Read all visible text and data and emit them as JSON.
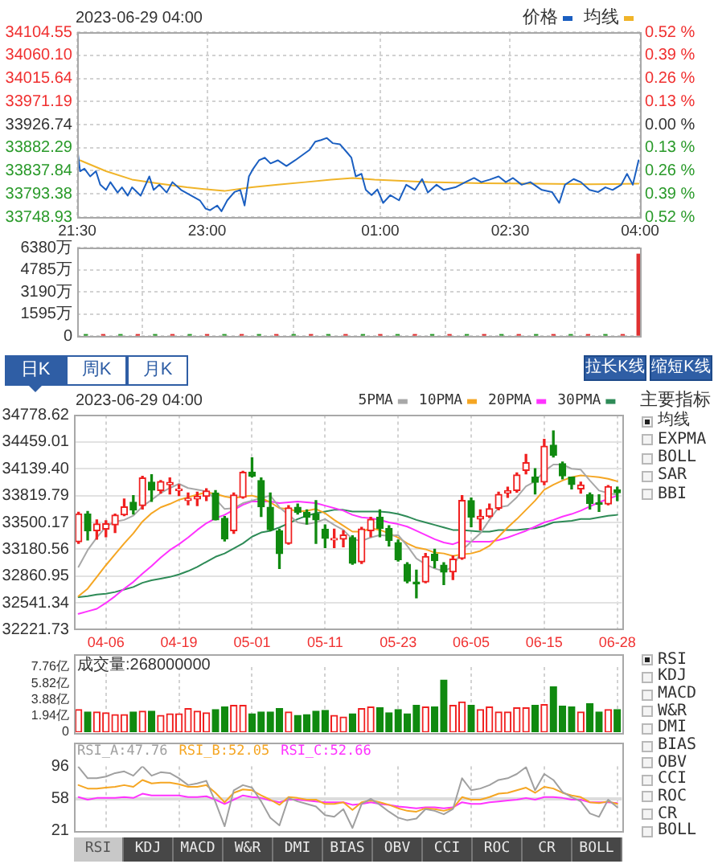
{
  "chart_data": [
    {
      "type": "line",
      "title": "2023-06-29 04:00",
      "legend": "top right",
      "grid": true,
      "xlim": [
        "2023-06-28T21:30",
        "2023-06-29T04:00"
      ],
      "xticks": [
        {
          "value": "2023-06-28T21:30",
          "label": "21:30"
        },
        {
          "value": "2023-06-28T23:00",
          "label": "23:00"
        },
        {
          "value": "2023-06-29T01:00",
          "label": "01:00"
        },
        {
          "value": "2023-06-29T02:30",
          "label": "02:30"
        },
        {
          "value": "2023-06-29T04:00",
          "label": "04:00"
        }
      ],
      "ylim": [
        33748.93,
        34104.55
      ],
      "yticks": [
        33748.93,
        33793.38,
        33837.84,
        33882.29,
        33926.74,
        33971.19,
        34015.64,
        {
          "value": 34060.1,
          "label": "34060.10"
        },
        34104.55
      ],
      "y2lim": [
        -0.52,
        0.52
      ],
      "y2ticks": [
        {
          "value": -0.52,
          "label": "0.52 %"
        },
        {
          "value": -0.39,
          "label": "0.39 %"
        },
        {
          "value": -0.26,
          "label": "0.26 %"
        },
        {
          "value": -0.13,
          "label": "0.13 %"
        },
        {
          "value": 0,
          "label": "0.00 %"
        },
        {
          "value": 0.13,
          "label": "0.13 %"
        },
        {
          "value": 0.26,
          "label": "0.26 %"
        },
        {
          "value": 0.39,
          "label": "0.39 %"
        },
        {
          "value": 0.52,
          "label": "0.52 %"
        }
      ],
      "series": [
        {
          "name": "价格",
          "color": "#1b5fc1",
          "x": [
            "2023-06-28T21:30",
            "2023-06-28T21:32",
            "2023-06-28T21:35",
            "2023-06-28T21:39",
            "2023-06-28T21:43",
            "2023-06-28T21:46",
            "2023-06-28T21:50",
            "2023-06-28T21:53",
            "2023-06-28T21:58",
            "2023-06-28T22:01",
            "2023-06-28T22:05",
            "2023-06-28T22:08",
            "2023-06-28T22:14",
            "2023-06-28T22:20",
            "2023-06-28T22:23",
            "2023-06-28T22:27",
            "2023-06-28T22:32",
            "2023-06-28T22:36",
            "2023-06-28T22:42",
            "2023-06-28T22:49",
            "2023-06-28T22:55",
            "2023-06-28T22:59",
            "2023-06-28T23:02",
            "2023-06-28T23:07",
            "2023-06-28T23:10",
            "2023-06-28T23:14",
            "2023-06-28T23:19",
            "2023-06-28T23:23",
            "2023-06-28T23:26",
            "2023-06-28T23:29",
            "2023-06-28T23:32",
            "2023-06-28T23:36",
            "2023-06-28T23:40",
            "2023-06-28T23:44",
            "2023-06-28T23:49",
            "2023-06-28T23:55",
            "2023-06-29T00:01",
            "2023-06-29T00:06",
            "2023-06-29T00:11",
            "2023-06-29T00:15",
            "2023-06-29T00:19",
            "2023-06-29T00:23",
            "2023-06-29T00:27",
            "2023-06-29T00:32",
            "2023-06-29T00:37",
            "2023-06-29T00:40",
            "2023-06-29T00:43",
            "2023-06-29T00:47",
            "2023-06-29T00:50",
            "2023-06-29T00:54",
            "2023-06-29T00:58",
            "2023-06-29T01:02",
            "2023-06-29T01:07",
            "2023-06-29T01:13",
            "2023-06-29T01:18",
            "2023-06-29T01:24",
            "2023-06-29T01:29",
            "2023-06-29T01:33",
            "2023-06-29T01:39",
            "2023-06-29T01:44",
            "2023-06-29T01:52",
            "2023-06-29T01:59",
            "2023-06-29T02:05",
            "2023-06-29T02:10",
            "2023-06-29T02:16",
            "2023-06-29T02:22",
            "2023-06-29T02:27",
            "2023-06-29T02:32",
            "2023-06-29T02:38",
            "2023-06-29T02:44",
            "2023-06-29T02:52",
            "2023-06-29T02:59",
            "2023-06-29T03:04",
            "2023-06-29T03:08",
            "2023-06-29T03:14",
            "2023-06-29T03:19",
            "2023-06-29T03:25",
            "2023-06-29T03:31",
            "2023-06-29T03:36",
            "2023-06-29T03:41",
            "2023-06-29T03:47",
            "2023-06-29T03:51",
            "2023-06-29T03:55",
            "2023-06-29T03:59"
          ],
          "values": [
            33883,
            33837,
            33842,
            33827,
            33837,
            33811,
            33801,
            33816,
            33796,
            33806,
            33790,
            33806,
            33790,
            33827,
            33801,
            33811,
            33796,
            33816,
            33801,
            33790,
            33781,
            33765,
            33762,
            33771,
            33760,
            33781,
            33797,
            33801,
            33771,
            33827,
            33842,
            33858,
            33863,
            33852,
            33858,
            33847,
            33858,
            33868,
            33878,
            33894,
            33897,
            33901,
            33891,
            33889,
            33873,
            33863,
            33827,
            33832,
            33801,
            33791,
            33802,
            33776,
            33791,
            33781,
            33811,
            33801,
            33822,
            33796,
            33811,
            33801,
            33806,
            33816,
            33824,
            33816,
            33821,
            33827,
            33816,
            33824,
            33811,
            33816,
            33801,
            33797,
            33776,
            33811,
            33822,
            33816,
            33801,
            33797,
            33806,
            33801,
            33811,
            33832,
            33811,
            33858
          ]
        },
        {
          "name": "均线",
          "color": "#f0b429",
          "x": [
            "2023-06-28T21:32",
            "2023-06-28T21:50",
            "2023-06-28T22:08",
            "2023-06-28T22:27",
            "2023-06-28T22:46",
            "2023-06-28T23:04",
            "2023-06-28T23:12",
            "2023-06-28T23:31",
            "2023-06-28T23:49",
            "2023-06-29T00:08",
            "2023-06-29T00:26",
            "2023-06-29T00:41",
            "2023-06-29T00:56",
            "2023-06-29T01:33",
            "2023-06-29T02:10",
            "2023-06-29T02:47",
            "2023-06-29T03:25",
            "2023-06-29T03:59"
          ],
          "values": [
            33858,
            33837,
            33821,
            33813,
            33806,
            33801,
            33799,
            33806,
            33811,
            33816,
            33821,
            33824,
            33821,
            33816,
            33814,
            33813,
            33812,
            33813
          ]
        }
      ]
    },
    {
      "type": "bar",
      "tick_labels": "y",
      "grid": true,
      "xlim": [
        "2023-06-28T21:30",
        "2023-06-29T04:00"
      ],
      "xticks": [
        {
          "value": "2023-06-28T21:30",
          "label": null
        },
        {
          "value": "2023-06-28T23:00",
          "label": null
        },
        {
          "value": "2023-06-29T01:00",
          "label": null
        },
        {
          "value": "2023-06-29T02:30",
          "label": null
        },
        {
          "value": "2023-06-29T04:00",
          "label": null
        }
      ],
      "ylim": [
        0,
        6380
      ],
      "yticks": [
        0,
        {
          "value": 1595,
          "label": "1595万"
        },
        {
          "value": 3190,
          "label": "3190万"
        },
        {
          "value": 4785,
          "label": "4785万"
        },
        {
          "value": 6380,
          "label": "6380万"
        }
      ],
      "x": [
        "2023-06-28T21:36",
        "2023-06-28T21:48",
        "2023-06-28T22:00",
        "2023-06-28T22:12",
        "2023-06-28T22:24",
        "2023-06-28T22:36",
        "2023-06-28T22:48",
        "2023-06-28T23:00",
        "2023-06-28T23:12",
        "2023-06-28T23:24",
        "2023-06-28T23:36",
        "2023-06-28T23:48",
        "2023-06-29T00:00",
        "2023-06-29T00:12",
        "2023-06-29T00:24",
        "2023-06-29T00:36",
        "2023-06-29T00:48",
        "2023-06-29T01:00",
        "2023-06-29T01:12",
        "2023-06-29T01:24",
        "2023-06-29T01:36",
        "2023-06-29T01:48",
        "2023-06-29T02:00",
        "2023-06-29T02:12",
        "2023-06-29T02:24",
        "2023-06-29T02:36",
        "2023-06-29T02:48",
        "2023-06-29T03:00",
        "2023-06-29T03:12",
        "2023-06-29T03:24",
        "2023-06-29T03:36",
        "2023-06-29T03:48",
        "2023-06-29T03:59"
      ],
      "values": [
        100,
        100,
        100,
        100,
        100,
        100,
        100,
        100,
        100,
        100,
        100,
        100,
        100,
        100,
        100,
        100,
        100,
        100,
        100,
        100,
        100,
        100,
        100,
        100,
        100,
        100,
        100,
        100,
        100,
        100,
        100,
        100,
        5900
      ],
      "colors": [
        "#2a9a2a",
        "#e03030",
        "#2a9a2a",
        "#e03030",
        "#2a9a2a",
        "#e03030",
        "#2a9a2a",
        "#e03030",
        "#2a9a2a",
        "#e03030",
        "#2a9a2a",
        "#e03030",
        "#2a9a2a",
        "#e03030",
        "#2a9a2a",
        "#e03030",
        "#2a9a2a",
        "#e03030",
        "#2a9a2a",
        "#e03030",
        "#2a9a2a",
        "#e03030",
        "#2a9a2a",
        "#e03030",
        "#2a9a2a",
        "#e03030",
        "#2a9a2a",
        "#e03030",
        "#2a9a2a",
        "#e03030",
        "#2a9a2a",
        "#e03030",
        "#e03030"
      ]
    },
    {
      "type": "candlestick",
      "title": "2023-06-29 04:00",
      "legend": "top right",
      "grid": true,
      "categories": [
        null,
        null,
        null,
        "04-06",
        null,
        null,
        null,
        null,
        null,
        null,
        null,
        "04-19",
        null,
        null,
        null,
        null,
        null,
        null,
        null,
        "05-01",
        null,
        null,
        null,
        null,
        null,
        null,
        null,
        "05-11",
        null,
        null,
        null,
        null,
        null,
        null,
        null,
        "05-23",
        null,
        null,
        null,
        null,
        null,
        null,
        null,
        "06-05",
        null,
        null,
        null,
        null,
        null,
        null,
        null,
        "06-15",
        null,
        null,
        null,
        null,
        null,
        null,
        null,
        "06-28"
      ],
      "ylim": [
        32221.73,
        34778.62
      ],
      "yticks": [
        32221.73,
        32541.34,
        32860.95,
        33180.56,
        33500.17,
        33819.79,
        {
          "value": 34139.4,
          "label": "34139.40"
        },
        34459.01,
        34778.62
      ],
      "ohlc": [
        [
          33270,
          33620,
          33250,
          33601
        ],
        [
          33600,
          33630,
          33290,
          33402
        ],
        [
          33400,
          33530,
          33300,
          33483
        ],
        [
          33420,
          33520,
          33330,
          33485
        ],
        [
          33470,
          33600,
          33380,
          33587
        ],
        [
          33590,
          33780,
          33580,
          33685
        ],
        [
          33740,
          33820,
          33600,
          33647
        ],
        [
          33700,
          34050,
          33660,
          34030
        ],
        [
          33980,
          34070,
          33750,
          33886
        ],
        [
          33880,
          34000,
          33850,
          33987
        ],
        [
          33950,
          34030,
          33840,
          33977
        ],
        [
          33880,
          33950,
          33820,
          33897
        ],
        [
          33760,
          33850,
          33710,
          33787
        ],
        [
          33780,
          33860,
          33700,
          33809
        ],
        [
          33810,
          33900,
          33760,
          33875
        ],
        [
          33850,
          33880,
          33530,
          33531
        ],
        [
          33550,
          33570,
          33280,
          33302
        ],
        [
          33400,
          33850,
          33370,
          33826
        ],
        [
          33800,
          34110,
          33790,
          34098
        ],
        [
          34100,
          34270,
          34040,
          34052
        ],
        [
          34000,
          34030,
          33570,
          33685
        ],
        [
          33680,
          33850,
          33400,
          33414
        ],
        [
          33400,
          33420,
          32950,
          33128
        ],
        [
          33250,
          33700,
          33240,
          33674
        ],
        [
          33680,
          33720,
          33600,
          33619
        ],
        [
          33620,
          33650,
          33480,
          33562
        ],
        [
          33600,
          33760,
          33250,
          33531
        ],
        [
          33420,
          33470,
          33200,
          33310
        ],
        [
          33290,
          33420,
          33200,
          33301
        ],
        [
          33300,
          33400,
          33210,
          33349
        ],
        [
          33320,
          33340,
          33000,
          33012
        ],
        [
          33030,
          33440,
          33010,
          33421
        ],
        [
          33400,
          33560,
          33330,
          33536
        ],
        [
          33560,
          33650,
          33330,
          33427
        ],
        [
          33430,
          33460,
          33220,
          33287
        ],
        [
          33260,
          33290,
          33040,
          33056
        ],
        [
          33000,
          33020,
          32780,
          32800
        ],
        [
          32790,
          32930,
          32600,
          32765
        ],
        [
          32790,
          33130,
          32780,
          33093
        ],
        [
          33120,
          33180,
          32960,
          33043
        ],
        [
          32990,
          33020,
          32760,
          32908
        ],
        [
          32910,
          33100,
          32820,
          33062
        ],
        [
          33070,
          33820,
          33060,
          33763
        ],
        [
          33760,
          33790,
          33450,
          33563
        ],
        [
          33540,
          33650,
          33410,
          33573
        ],
        [
          33570,
          33720,
          33560,
          33665
        ],
        [
          33670,
          33860,
          33650,
          33834
        ],
        [
          33850,
          33920,
          33800,
          33877
        ],
        [
          33880,
          34090,
          33860,
          34066
        ],
        [
          34120,
          34310,
          34080,
          34212
        ],
        [
          34040,
          34140,
          33840,
          33979
        ],
        [
          33980,
          34490,
          33950,
          34408
        ],
        [
          34420,
          34590,
          34280,
          34299
        ],
        [
          34200,
          34220,
          34020,
          34054
        ],
        [
          34040,
          34040,
          33900,
          33952
        ],
        [
          33900,
          33980,
          33850,
          33947
        ],
        [
          33830,
          33850,
          33660,
          33727
        ],
        [
          33730,
          33830,
          33630,
          33715
        ],
        [
          33720,
          33940,
          33710,
          33927
        ],
        [
          33890,
          33920,
          33760,
          33853
        ]
      ],
      "colors": [
        "#f02020",
        "#108a10",
        "#f02020",
        "#f02020",
        "#f02020",
        "#f02020",
        "#108a10",
        "#f02020",
        "#108a10",
        "#f02020",
        "#f02020",
        "#f02020",
        "#f02020",
        "#f02020",
        "#f02020",
        "#108a10",
        "#108a10",
        "#f02020",
        "#f02020",
        "#108a10",
        "#108a10",
        "#108a10",
        "#108a10",
        "#f02020",
        "#108a10",
        "#108a10",
        "#108a10",
        "#108a10",
        "#f02020",
        "#f02020",
        "#108a10",
        "#f02020",
        "#f02020",
        "#108a10",
        "#108a10",
        "#108a10",
        "#108a10",
        "#108a10",
        "#f02020",
        "#108a10",
        "#108a10",
        "#f02020",
        "#f02020",
        "#108a10",
        "#f02020",
        "#f02020",
        "#f02020",
        "#f02020",
        "#f02020",
        "#f02020",
        "#108a10",
        "#f02020",
        "#108a10",
        "#108a10",
        "#108a10",
        "#f02020",
        "#108a10",
        "#108a10",
        "#f02020",
        "#108a10"
      ],
      "series": [
        {
          "name": "5PMA",
          "type": "line",
          "color": "#a8a8a8",
          "values": [
            32970,
            33170,
            33320,
            33450,
            33510,
            33530,
            33580,
            33690,
            33770,
            33850,
            33910,
            33960,
            33910,
            33890,
            33870,
            33780,
            33660,
            33670,
            33730,
            33760,
            33790,
            33820,
            33680,
            33590,
            33500,
            33480,
            33500,
            33540,
            33470,
            33410,
            33300,
            33280,
            33320,
            33350,
            33340,
            33350,
            33220,
            33070,
            33000,
            32950,
            32920,
            32970,
            33170,
            33270,
            33370,
            33530,
            33680,
            33700,
            33800,
            33930,
            33990,
            34110,
            34190,
            34190,
            34140,
            34130,
            34000,
            33880,
            33850,
            33830
          ]
        },
        {
          "name": "10PMA",
          "type": "line",
          "color": "#f5a623",
          "values": [
            32620,
            32710,
            32850,
            32990,
            33120,
            33250,
            33370,
            33510,
            33610,
            33680,
            33720,
            33770,
            33800,
            33830,
            33860,
            33840,
            33810,
            33790,
            33810,
            33820,
            33790,
            33740,
            33670,
            33660,
            33630,
            33640,
            33660,
            33610,
            33530,
            33460,
            33390,
            33390,
            33430,
            33410,
            33370,
            33320,
            33250,
            33200,
            33180,
            33140,
            33130,
            33100,
            33120,
            33130,
            33160,
            33220,
            33330,
            33440,
            33540,
            33650,
            33760,
            33890,
            33950,
            34000,
            34040,
            34060,
            34050,
            34040,
            34020,
            33990
          ]
        },
        {
          "name": "20PMA",
          "type": "line",
          "color": "#ff33ff",
          "values": [
            32410,
            32440,
            32470,
            32540,
            32620,
            32710,
            32790,
            32890,
            32980,
            33080,
            33170,
            33240,
            33320,
            33410,
            33490,
            33550,
            33590,
            33650,
            33710,
            33750,
            33750,
            33750,
            33730,
            33740,
            33750,
            33740,
            33730,
            33700,
            33670,
            33640,
            33590,
            33560,
            33550,
            33530,
            33500,
            33480,
            33450,
            33400,
            33350,
            33300,
            33260,
            33240,
            33280,
            33270,
            33270,
            33270,
            33290,
            33320,
            33360,
            33400,
            33450,
            33500,
            33530,
            33570,
            33600,
            33640,
            33690,
            33740,
            33780,
            33820
          ]
        },
        {
          "name": "30PMA",
          "type": "line",
          "color": "#2e8b57",
          "values": [
            32610,
            32620,
            32640,
            32650,
            32670,
            32700,
            32730,
            32780,
            32810,
            32830,
            32850,
            32880,
            32920,
            32970,
            33030,
            33090,
            33130,
            33190,
            33250,
            33330,
            33380,
            33400,
            33440,
            33490,
            33540,
            33580,
            33610,
            33630,
            33650,
            33650,
            33630,
            33630,
            33630,
            33630,
            33620,
            33600,
            33570,
            33530,
            33500,
            33470,
            33440,
            33410,
            33410,
            33400,
            33390,
            33390,
            33410,
            33410,
            33410,
            33420,
            33430,
            33460,
            33500,
            33510,
            33520,
            33540,
            33540,
            33560,
            33580,
            33590
          ]
        }
      ],
      "annotations": [
        "日K",
        "周K",
        "月K",
        "拉长K线",
        "缩短K线",
        "主要指标",
        "均线",
        "EXPMA",
        "BOLL",
        "SAR",
        "BBI"
      ]
    },
    {
      "type": "bar",
      "title": "成交量:268000000",
      "tick_labels": "y",
      "grid": "x",
      "categories": [
        null,
        null,
        null,
        null,
        null,
        null,
        null,
        null,
        null,
        null,
        null,
        null,
        null,
        null,
        null,
        null,
        null,
        null,
        null,
        null,
        null,
        null,
        null,
        null,
        null,
        null,
        null,
        null,
        null,
        null,
        null,
        null,
        null,
        null,
        null,
        null,
        null,
        null,
        null,
        null,
        null,
        null,
        null,
        null,
        null,
        null,
        null,
        null,
        null,
        null,
        null,
        null,
        null,
        null,
        null,
        null,
        null,
        null,
        null,
        null
      ],
      "ylim": [
        0,
        7.76
      ],
      "yticks": [
        0,
        {
          "value": 1.94,
          "label": "1.94亿"
        },
        {
          "value": 3.88,
          "label": "3.88亿"
        },
        {
          "value": 5.82,
          "label": "5.82亿"
        },
        {
          "value": 7.76,
          "label": "7.76亿"
        }
      ],
      "values": [
        2.7,
        2.4,
        2.4,
        2.3,
        2.1,
        2.1,
        2.4,
        2.5,
        2.5,
        2.0,
        2.2,
        2.2,
        2.8,
        2.5,
        2.3,
        2.7,
        3.0,
        3.2,
        3.2,
        2.2,
        2.4,
        2.4,
        2.8,
        2.4,
        2.0,
        2.1,
        2.5,
        2.6,
        2.0,
        1.8,
        2.2,
        2.8,
        3.0,
        2.9,
        2.3,
        2.7,
        2.2,
        3.2,
        3.0,
        3.0,
        6.2,
        3.2,
        3.6,
        3.2,
        2.7,
        3.0,
        2.4,
        2.4,
        2.9,
        2.9,
        3.2,
        3.3,
        5.4,
        3.1,
        3.0,
        2.4,
        3.4,
        2.4,
        2.7,
        2.7
      ],
      "colors": [
        "#f02020",
        "#108a10",
        "#f02020",
        "#f02020",
        "#f02020",
        "#f02020",
        "#108a10",
        "#f02020",
        "#108a10",
        "#f02020",
        "#f02020",
        "#f02020",
        "#f02020",
        "#f02020",
        "#f02020",
        "#108a10",
        "#108a10",
        "#f02020",
        "#f02020",
        "#108a10",
        "#108a10",
        "#108a10",
        "#108a10",
        "#f02020",
        "#108a10",
        "#108a10",
        "#108a10",
        "#108a10",
        "#f02020",
        "#f02020",
        "#108a10",
        "#f02020",
        "#f02020",
        "#108a10",
        "#108a10",
        "#108a10",
        "#108a10",
        "#108a10",
        "#f02020",
        "#108a10",
        "#108a10",
        "#f02020",
        "#f02020",
        "#108a10",
        "#f02020",
        "#f02020",
        "#f02020",
        "#f02020",
        "#f02020",
        "#f02020",
        "#108a10",
        "#f02020",
        "#108a10",
        "#108a10",
        "#108a10",
        "#f02020",
        "#108a10",
        "#108a10",
        "#f02020",
        "#108a10"
      ],
      "annotations": [
        "RSI",
        "KDJ",
        "MACD",
        "W&R",
        "DMI",
        "BIAS",
        "OBV",
        "CCI",
        "ROC",
        "CR",
        "BOLL"
      ]
    },
    {
      "type": "line",
      "legend": "top left",
      "tick_labels": "y",
      "grid": "x",
      "categories": [
        null,
        null,
        null,
        null,
        null,
        null,
        null,
        null,
        null,
        null,
        null,
        null,
        null,
        null,
        null,
        null,
        null,
        null,
        null,
        null,
        null,
        null,
        null,
        null,
        null,
        null,
        null,
        null,
        null,
        null,
        null,
        null,
        null,
        null,
        null,
        null,
        null,
        null,
        null,
        null,
        null,
        null,
        null,
        null,
        null,
        null,
        null,
        null,
        null,
        null,
        null,
        null,
        null,
        null,
        null,
        null,
        null,
        null,
        null,
        null
      ],
      "ylim": [
        21,
        96
      ],
      "yticks": [
        21,
        58,
        96
      ],
      "ref_lines": [
        {
          "axis": "y",
          "value": 58,
          "color": "#dcdcdc"
        }
      ],
      "series": [
        {
          "name": "RSI_A:47.76",
          "color": "#a0a0a0",
          "values": [
            95,
            82,
            82,
            84,
            88,
            90,
            85,
            96,
            85,
            89,
            88,
            82,
            74,
            76,
            79,
            54,
            26,
            68,
            74,
            71,
            55,
            36,
            27,
            59,
            55,
            52,
            49,
            39,
            37,
            46,
            24,
            52,
            58,
            51,
            43,
            36,
            33,
            35,
            46,
            44,
            40,
            46,
            82,
            68,
            70,
            74,
            80,
            82,
            87,
            95,
            68,
            87,
            80,
            66,
            60,
            55,
            41,
            37,
            57,
            48
          ]
        },
        {
          "name": "RSI_B:52.05",
          "color": "#f5a623",
          "values": [
            74,
            70,
            70,
            71,
            72,
            74,
            72,
            80,
            76,
            77,
            77,
            75,
            72,
            72,
            74,
            65,
            54,
            65,
            69,
            68,
            62,
            57,
            51,
            60,
            59,
            57,
            57,
            52,
            52,
            54,
            45,
            54,
            56,
            54,
            51,
            47,
            44,
            43,
            47,
            46,
            44,
            47,
            60,
            57,
            57,
            60,
            64,
            65,
            68,
            71,
            65,
            72,
            70,
            65,
            62,
            60,
            54,
            53,
            55,
            52
          ]
        },
        {
          "name": "RSI_C:52.66",
          "color": "#ff33ff",
          "values": [
            60,
            57,
            59,
            59,
            59,
            60,
            59,
            64,
            62,
            62,
            62,
            62,
            60,
            60,
            61,
            57,
            52,
            57,
            62,
            60,
            59,
            56,
            54,
            57,
            57,
            56,
            55,
            54,
            54,
            54,
            51,
            52,
            54,
            52,
            51,
            49,
            48,
            47,
            48,
            48,
            47,
            48,
            54,
            52,
            52,
            54,
            55,
            56,
            57,
            59,
            57,
            60,
            60,
            59,
            57,
            57,
            54,
            54,
            54,
            53
          ]
        }
      ],
      "annotations": [
        "RSI",
        "KDJ",
        "MACD",
        "W&R",
        "DMI",
        "BIAS",
        "OBV",
        "CCI",
        "ROC",
        "CR",
        "BOLL"
      ]
    }
  ]
}
